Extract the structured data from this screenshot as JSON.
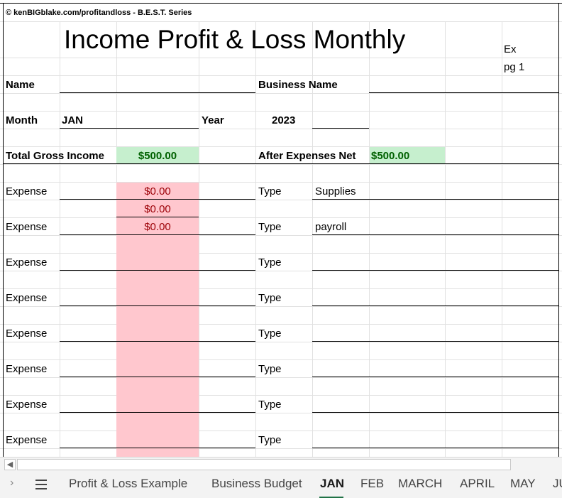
{
  "header": {
    "copyright": "© kenBIGblake.com/profitandloss - B.E.S.T. Series",
    "title": "Income Profit & Loss Monthly",
    "side_note_1": "Ex",
    "side_note_2": "pg 1"
  },
  "form": {
    "name_label": "Name",
    "business_name_label": "Business Name",
    "month_label": "Month",
    "month_value": "JAN",
    "year_label": "Year",
    "year_value": "2023",
    "gross_income_label": "Total Gross Income",
    "gross_income_value": "$500.00",
    "net_label": "After Expenses Net",
    "net_value": "$500.00"
  },
  "expenses": [
    {
      "label": "Expense",
      "amount": "$0.00",
      "type_label": "Type",
      "type_value": "Supplies"
    },
    {
      "label": "",
      "amount": "$0.00",
      "type_label": "",
      "type_value": ""
    },
    {
      "label": "Expense",
      "amount": "$0.00",
      "type_label": "Type",
      "type_value": "payroll"
    },
    {
      "label": "",
      "amount": "",
      "type_label": "",
      "type_value": ""
    },
    {
      "label": "Expense",
      "amount": "",
      "type_label": "Type",
      "type_value": ""
    },
    {
      "label": "",
      "amount": "",
      "type_label": "",
      "type_value": ""
    },
    {
      "label": "Expense",
      "amount": "",
      "type_label": "Type",
      "type_value": ""
    },
    {
      "label": "",
      "amount": "",
      "type_label": "",
      "type_value": ""
    },
    {
      "label": "Expense",
      "amount": "",
      "type_label": "Type",
      "type_value": ""
    },
    {
      "label": "",
      "amount": "",
      "type_label": "",
      "type_value": ""
    },
    {
      "label": "Expense",
      "amount": "",
      "type_label": "Type",
      "type_value": ""
    },
    {
      "label": "",
      "amount": "",
      "type_label": "",
      "type_value": ""
    },
    {
      "label": "Expense",
      "amount": "",
      "type_label": "Type",
      "type_value": ""
    },
    {
      "label": "",
      "amount": "",
      "type_label": "",
      "type_value": ""
    },
    {
      "label": "Expense",
      "amount": "",
      "type_label": "Type",
      "type_value": ""
    }
  ],
  "tabs": {
    "t0": "Profit & Loss Example",
    "t1": "Business Budget",
    "t2": "JAN",
    "t3": "FEB",
    "t4": "MARCH",
    "t5": "APRIL",
    "t6": "MAY",
    "t7": "JU",
    "active": "JAN"
  },
  "colors": {
    "green_fill": "#c6efce",
    "green_text": "#006100",
    "red_fill": "#ffc7ce",
    "red_text": "#9c0006",
    "accent": "#217346"
  },
  "icons": {
    "nav": "chevron-right-icon",
    "menu": "hamburger-menu-icon",
    "scroll": "scroll-left-arrow-icon"
  }
}
